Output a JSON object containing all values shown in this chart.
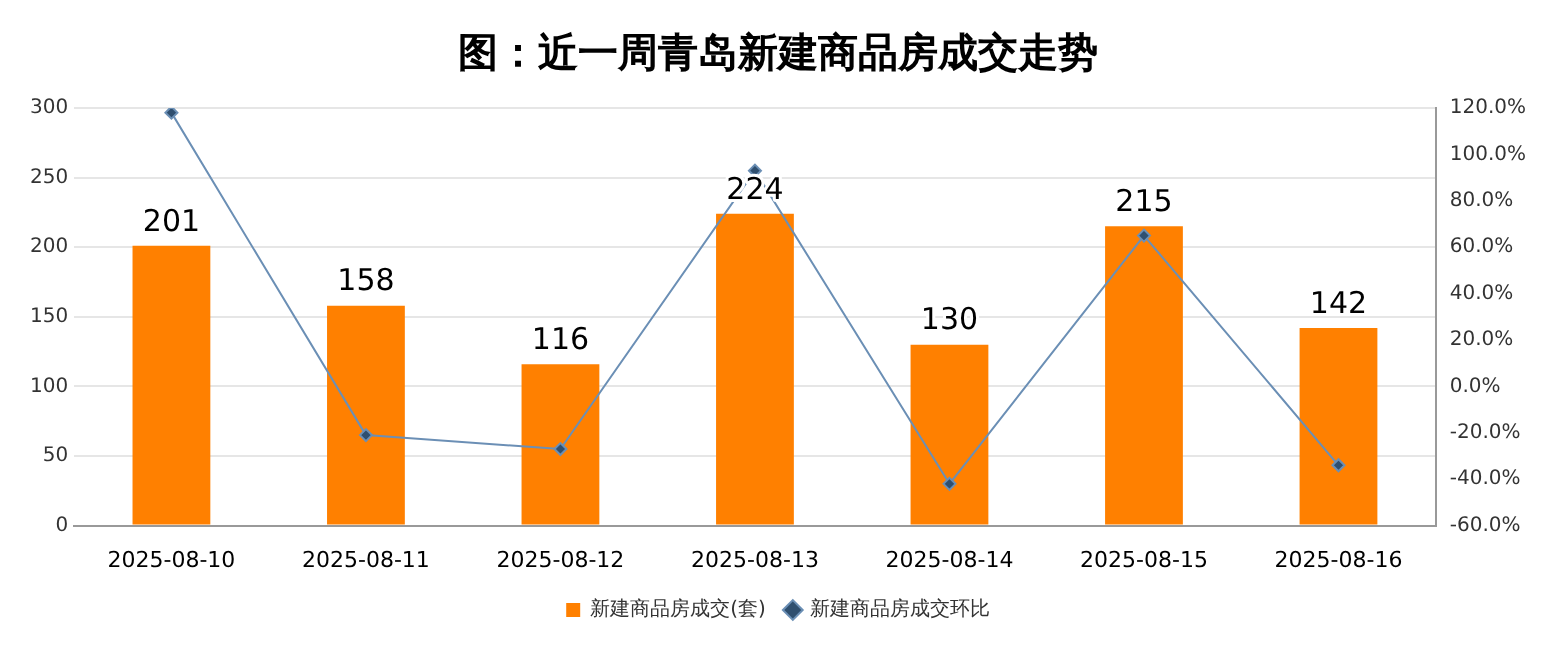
{
  "chart_data": {
    "type": "bar",
    "title": "图：近一周青岛新建商品房成交走势",
    "categories": [
      "2025-08-10",
      "2025-08-11",
      "2025-08-12",
      "2025-08-13",
      "2025-08-14",
      "2025-08-15",
      "2025-08-16"
    ],
    "series": [
      {
        "name": "新建商品房成交(套)",
        "color": "#ff8000",
        "values": [
          201,
          158,
          116,
          224,
          130,
          215,
          142
        ],
        "value_labels": [
          "201",
          "158",
          "116",
          "224",
          "130",
          "215",
          "142"
        ]
      },
      {
        "name": "新建商品房成交环比",
        "type": "line",
        "axis": "y2",
        "color": "#6b8fb5",
        "marker": "diamond",
        "values": [
          118,
          -21,
          -27,
          93,
          -42,
          65,
          -34
        ]
      }
    ],
    "ylim": [
      0,
      300
    ],
    "yticks": [
      0,
      50,
      100,
      150,
      200,
      250,
      300
    ],
    "y2lim": [
      -60,
      120
    ],
    "y2ticks": [
      {
        "value": -60,
        "label": "-60.0%"
      },
      {
        "value": -40,
        "label": "-40.0%"
      },
      {
        "value": -20,
        "label": "-20.0%"
      },
      {
        "value": 0,
        "label": "0.0%"
      },
      {
        "value": 20,
        "label": "20.0%"
      },
      {
        "value": 40,
        "label": "40.0%"
      },
      {
        "value": 60,
        "label": "60.0%"
      },
      {
        "value": 80,
        "label": "80.0%"
      },
      {
        "value": 100,
        "label": "100.0%"
      },
      {
        "value": 120,
        "label": "120.0%"
      }
    ],
    "grid": "y",
    "legend": "bottom"
  }
}
